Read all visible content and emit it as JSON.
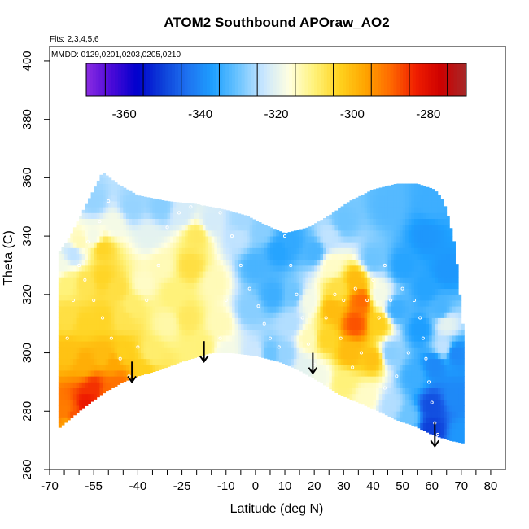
{
  "chart_data": {
    "type": "heatmap",
    "title": "ATOM2 Southbound APOraw_AO2",
    "annotations": {
      "flights": "Flts: 2,3,4,5,6",
      "dates": "MMDD: 0129,0201,0203,0205,0210"
    },
    "xlabel": "Latitude (deg N)",
    "ylabel": "Theta (C)",
    "xlim": [
      -70,
      85
    ],
    "ylim": [
      260,
      405
    ],
    "x_ticks": [
      -70,
      -65,
      -60,
      -55,
      -50,
      -45,
      -40,
      -35,
      -30,
      -25,
      -20,
      -15,
      -10,
      -5,
      0,
      5,
      10,
      15,
      20,
      25,
      30,
      35,
      40,
      45,
      50,
      55,
      60,
      65,
      70,
      75,
      80
    ],
    "x_tick_labels": [
      "-70",
      "",
      "",
      "-55",
      "",
      "",
      "-40",
      "",
      "",
      "-25",
      "",
      "",
      "-10",
      "",
      "0",
      "",
      "10",
      "",
      "20",
      "",
      "30",
      "",
      "40",
      "",
      "50",
      "",
      "60",
      "",
      "70",
      "",
      "80"
    ],
    "y_ticks": [
      260,
      280,
      300,
      320,
      340,
      360,
      380,
      400
    ],
    "y_tick_labels": [
      "260",
      "280",
      "300",
      "320",
      "340",
      "360",
      "380",
      "400"
    ],
    "colorbar": {
      "range": [
        -370,
        -270
      ],
      "tick_values": [
        -360,
        -340,
        -320,
        -300,
        -280
      ],
      "tick_labels": [
        "-360",
        "-340",
        "-320",
        "-300",
        "-280"
      ],
      "colors": [
        "#8a2be2",
        "#4b0ad8",
        "#0000cd",
        "#0d3fd9",
        "#1e72f0",
        "#1ea0ff",
        "#6cc4ff",
        "#c9e6ff",
        "#ffffe0",
        "#fff27a",
        "#ffd21e",
        "#ffa500",
        "#ff6a00",
        "#f01e00",
        "#cd0000",
        "#a52a2a"
      ]
    },
    "surface": {
      "bottom_boundary": [
        [
          -67,
          274
        ],
        [
          -60,
          280
        ],
        [
          -52,
          286
        ],
        [
          -45,
          290
        ],
        [
          -40,
          292
        ],
        [
          -33,
          294
        ],
        [
          -25,
          297
        ],
        [
          -15,
          300
        ],
        [
          -8,
          300
        ],
        [
          0,
          299
        ],
        [
          8,
          297
        ],
        [
          15,
          294
        ],
        [
          22,
          290
        ],
        [
          28,
          286
        ],
        [
          35,
          283
        ],
        [
          42,
          280
        ],
        [
          48,
          277
        ],
        [
          54,
          275
        ],
        [
          60,
          272
        ],
        [
          66,
          270
        ],
        [
          71,
          269
        ]
      ],
      "top_boundary": [
        [
          -67,
          334
        ],
        [
          -63,
          340
        ],
        [
          -59,
          348
        ],
        [
          -55,
          356
        ],
        [
          -52,
          362
        ],
        [
          -47,
          358
        ],
        [
          -40,
          354
        ],
        [
          -30,
          352
        ],
        [
          -20,
          351
        ],
        [
          -10,
          349
        ],
        [
          -3,
          347
        ],
        [
          3,
          344
        ],
        [
          10,
          341
        ],
        [
          18,
          343
        ],
        [
          25,
          347
        ],
        [
          32,
          352
        ],
        [
          40,
          356
        ],
        [
          48,
          358
        ],
        [
          55,
          358
        ],
        [
          61,
          356
        ],
        [
          64,
          352
        ],
        [
          66,
          345
        ],
        [
          68,
          336
        ],
        [
          69,
          325
        ],
        [
          70,
          315
        ],
        [
          71,
          305
        ],
        [
          72,
          290
        ],
        [
          72,
          272
        ]
      ],
      "anchors": [
        [
          -65,
          280,
          -292
        ],
        [
          -62,
          278,
          -288
        ],
        [
          -57,
          282,
          -282
        ],
        [
          -55,
          288,
          -285
        ],
        [
          -50,
          287,
          -290
        ],
        [
          -47,
          290,
          -291
        ],
        [
          -64,
          300,
          -301
        ],
        [
          -58,
          296,
          -298
        ],
        [
          -52,
          299,
          -300
        ],
        [
          -48,
          296,
          -297
        ],
        [
          -45,
          300,
          -303
        ],
        [
          -64,
          312,
          -306
        ],
        [
          -58,
          310,
          -304
        ],
        [
          -52,
          312,
          -304
        ],
        [
          -45,
          312,
          -307
        ],
        [
          -64,
          324,
          -310
        ],
        [
          -58,
          324,
          -307
        ],
        [
          -52,
          326,
          -304
        ],
        [
          -47,
          322,
          -306
        ],
        [
          -42,
          316,
          -309
        ],
        [
          -60,
          338,
          -314
        ],
        [
          -55,
          340,
          -318
        ],
        [
          -52,
          336,
          -304
        ],
        [
          -48,
          344,
          -318
        ],
        [
          -38,
          294,
          -303
        ],
        [
          -35,
          300,
          -309
        ],
        [
          -30,
          310,
          -313
        ],
        [
          -38,
          324,
          -315
        ],
        [
          -32,
          330,
          -314
        ],
        [
          -36,
          340,
          -320
        ],
        [
          -28,
          320,
          -310
        ],
        [
          -22,
          330,
          -306
        ],
        [
          -20,
          340,
          -308
        ],
        [
          -23,
          312,
          -308
        ],
        [
          -18,
          302,
          -310
        ],
        [
          -14,
          324,
          -314
        ],
        [
          -12,
          310,
          -314
        ],
        [
          -10,
          300,
          -318
        ],
        [
          -6,
          340,
          -324
        ],
        [
          -15,
          345,
          -322
        ],
        [
          -42,
          350,
          -327
        ],
        [
          -32,
          350,
          -328
        ],
        [
          -55,
          352,
          -327
        ],
        [
          0,
          300,
          -323
        ],
        [
          -2,
          315,
          -328
        ],
        [
          0,
          330,
          -333
        ],
        [
          2,
          342,
          -328
        ],
        [
          5,
          300,
          -330
        ],
        [
          6,
          320,
          -334
        ],
        [
          8,
          335,
          -336
        ],
        [
          10,
          300,
          -327
        ],
        [
          12,
          310,
          -325
        ],
        [
          13,
          320,
          -330
        ],
        [
          12,
          338,
          -335
        ],
        [
          17,
          295,
          -320
        ],
        [
          18,
          305,
          -314
        ],
        [
          18,
          318,
          -318
        ],
        [
          20,
          335,
          -333
        ],
        [
          22,
          292,
          -318
        ],
        [
          24,
          305,
          -304
        ],
        [
          26,
          315,
          -300
        ],
        [
          28,
          322,
          -306
        ],
        [
          26,
          330,
          -315
        ],
        [
          30,
          290,
          -310
        ],
        [
          32,
          300,
          -300
        ],
        [
          34,
          310,
          -288
        ],
        [
          36,
          318,
          -290
        ],
        [
          34,
          325,
          -300
        ],
        [
          38,
          285,
          -315
        ],
        [
          40,
          298,
          -301
        ],
        [
          42,
          310,
          -303
        ],
        [
          42,
          320,
          -318
        ],
        [
          40,
          332,
          -330
        ],
        [
          46,
          282,
          -325
        ],
        [
          46,
          300,
          -328
        ],
        [
          48,
          315,
          -334
        ],
        [
          50,
          330,
          -336
        ],
        [
          52,
          278,
          -330
        ],
        [
          54,
          292,
          -334
        ],
        [
          56,
          308,
          -337
        ],
        [
          58,
          322,
          -336
        ],
        [
          58,
          340,
          -338
        ],
        [
          60,
          274,
          -350
        ],
        [
          60,
          282,
          -348
        ],
        [
          61,
          296,
          -340
        ],
        [
          63,
          315,
          -333
        ],
        [
          64,
          302,
          -324
        ],
        [
          65,
          310,
          -320
        ],
        [
          65,
          328,
          -338
        ],
        [
          68,
          300,
          -340
        ],
        [
          68,
          285,
          -340
        ],
        [
          70,
          272,
          -338
        ],
        [
          30,
          345,
          -330
        ],
        [
          45,
          350,
          -332
        ],
        [
          60,
          352,
          -334
        ],
        [
          25,
          340,
          -324
        ],
        [
          -25,
          348,
          -322
        ],
        [
          -5,
          345,
          -326
        ],
        [
          -66,
          330,
          -318
        ],
        [
          -62,
          334,
          -324
        ],
        [
          -64,
          276,
          -296
        ],
        [
          -55,
          280,
          -280
        ]
      ]
    },
    "arrows": [
      {
        "lat": -42,
        "theta_top": 297,
        "theta_bottom": 290
      },
      {
        "lat": -17.5,
        "theta_top": 304,
        "theta_bottom": 297
      },
      {
        "lat": 19.5,
        "theta_top": 300,
        "theta_bottom": 293
      },
      {
        "lat": 61,
        "theta_top": 276,
        "theta_bottom": 268
      }
    ],
    "flight_points": [
      [
        -58,
        325
      ],
      [
        -55,
        318
      ],
      [
        -52,
        312
      ],
      [
        -49,
        305
      ],
      [
        -46,
        298
      ],
      [
        -43,
        292
      ],
      [
        -57,
        338
      ],
      [
        -53,
        345
      ],
      [
        -50,
        352
      ],
      [
        -40,
        302
      ],
      [
        -37,
        318
      ],
      [
        -33,
        330
      ],
      [
        -30,
        343
      ],
      [
        -26,
        348
      ],
      [
        -22,
        350
      ],
      [
        -18,
        351
      ],
      [
        -12,
        348
      ],
      [
        -8,
        340
      ],
      [
        -5,
        330
      ],
      [
        -2,
        322
      ],
      [
        1,
        316
      ],
      [
        3,
        310
      ],
      [
        5,
        305
      ],
      [
        8,
        302
      ],
      [
        -10,
        318
      ],
      [
        -12,
        305
      ],
      [
        10,
        340
      ],
      [
        12,
        330
      ],
      [
        14,
        320
      ],
      [
        16,
        312
      ],
      [
        18,
        303
      ],
      [
        20,
        296
      ],
      [
        24,
        312
      ],
      [
        27,
        320
      ],
      [
        30,
        318
      ],
      [
        34,
        322
      ],
      [
        38,
        318
      ],
      [
        42,
        312
      ],
      [
        46,
        318
      ],
      [
        50,
        322
      ],
      [
        54,
        318
      ],
      [
        56,
        312
      ],
      [
        57,
        305
      ],
      [
        58,
        298
      ],
      [
        59,
        290
      ],
      [
        60,
        283
      ],
      [
        61,
        276
      ],
      [
        62,
        272
      ],
      [
        52,
        300
      ],
      [
        48,
        292
      ],
      [
        44,
        288
      ],
      [
        36,
        300
      ],
      [
        33,
        295
      ],
      [
        29,
        305
      ],
      [
        40,
        325
      ],
      [
        44,
        330
      ],
      [
        -60,
        330
      ],
      [
        -62,
        318
      ],
      [
        -64,
        305
      ]
    ]
  }
}
